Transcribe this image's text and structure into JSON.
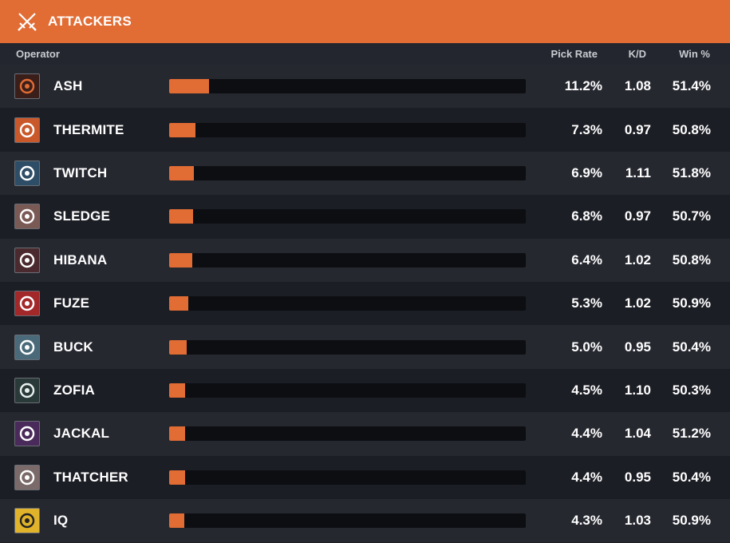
{
  "header": {
    "title": "ATTACKERS",
    "icon": "crossed-swords-icon"
  },
  "columns": {
    "operator": "Operator",
    "pick_rate": "Pick Rate",
    "kd": "K/D",
    "win": "Win %"
  },
  "colors": {
    "accent": "#e16c34",
    "track": "#0d0e12"
  },
  "operators": [
    {
      "name": "ASH",
      "pick_rate": "11.2%",
      "pick_value": 11.2,
      "kd": "1.08",
      "win": "51.4%",
      "icon": "ash-icon",
      "icon_bg": "#3a1e1a",
      "icon_fg": "#e16c34"
    },
    {
      "name": "THERMITE",
      "pick_rate": "7.3%",
      "pick_value": 7.3,
      "kd": "0.97",
      "win": "50.8%",
      "icon": "thermite-icon",
      "icon_bg": "#c9582a",
      "icon_fg": "#ffffff"
    },
    {
      "name": "TWITCH",
      "pick_rate": "6.9%",
      "pick_value": 6.9,
      "kd": "1.11",
      "win": "51.8%",
      "icon": "twitch-icon",
      "icon_bg": "#2e4d66",
      "icon_fg": "#ffffff"
    },
    {
      "name": "SLEDGE",
      "pick_rate": "6.8%",
      "pick_value": 6.8,
      "kd": "0.97",
      "win": "50.7%",
      "icon": "sledge-icon",
      "icon_bg": "#7a5a55",
      "icon_fg": "#ffffff"
    },
    {
      "name": "HIBANA",
      "pick_rate": "6.4%",
      "pick_value": 6.4,
      "kd": "1.02",
      "win": "50.8%",
      "icon": "hibana-icon",
      "icon_bg": "#4a2a2e",
      "icon_fg": "#ffffff"
    },
    {
      "name": "FUZE",
      "pick_rate": "5.3%",
      "pick_value": 5.3,
      "kd": "1.02",
      "win": "50.9%",
      "icon": "fuze-icon",
      "icon_bg": "#a3282a",
      "icon_fg": "#ffffff"
    },
    {
      "name": "BUCK",
      "pick_rate": "5.0%",
      "pick_value": 5.0,
      "kd": "0.95",
      "win": "50.4%",
      "icon": "buck-icon",
      "icon_bg": "#4a6a7a",
      "icon_fg": "#ffffff"
    },
    {
      "name": "ZOFIA",
      "pick_rate": "4.5%",
      "pick_value": 4.5,
      "kd": "1.10",
      "win": "50.3%",
      "icon": "zofia-icon",
      "icon_bg": "#2a3a38",
      "icon_fg": "#e8f0ee"
    },
    {
      "name": "JACKAL",
      "pick_rate": "4.4%",
      "pick_value": 4.4,
      "kd": "1.04",
      "win": "51.2%",
      "icon": "jackal-icon",
      "icon_bg": "#4a2a5a",
      "icon_fg": "#ffffff"
    },
    {
      "name": "THATCHER",
      "pick_rate": "4.4%",
      "pick_value": 4.4,
      "kd": "0.95",
      "win": "50.4%",
      "icon": "thatcher-icon",
      "icon_bg": "#7a6a6a",
      "icon_fg": "#ffffff"
    },
    {
      "name": "IQ",
      "pick_rate": "4.3%",
      "pick_value": 4.3,
      "kd": "1.03",
      "win": "50.9%",
      "icon": "iq-icon",
      "icon_bg": "#e0b32a",
      "icon_fg": "#222222"
    }
  ]
}
